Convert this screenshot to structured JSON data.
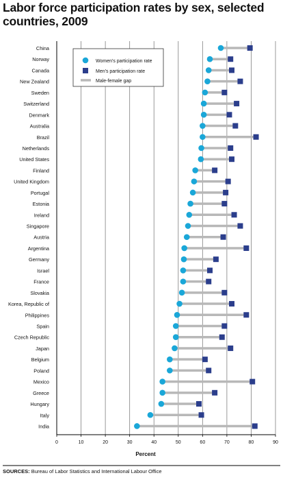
{
  "title": "Labor force participation rates by sex, selected countries, 2009",
  "source": {
    "label": "SOURCES:",
    "text": "Bureau of Labor Statistics and International Labour Office"
  },
  "colors": {
    "women": "#1aa7d8",
    "men": "#2b3e8c",
    "gap": "#b8b8b8",
    "grid": "#7f7f7f",
    "axis": "#000000"
  },
  "chart_data": {
    "type": "scatter",
    "orientation": "horizontal dot plot (dumbbell)",
    "title": "Labor force participation rates by sex, selected countries, 2009",
    "xlabel": "Percent",
    "ylabel": "",
    "xlim": [
      0,
      90
    ],
    "xticks": [
      0,
      10,
      20,
      30,
      40,
      50,
      60,
      70,
      80,
      90
    ],
    "grid": "vertical lines at each tick",
    "legend_position": "top-left inside plot",
    "legend": [
      {
        "key": "women",
        "label": "Women's participation rate",
        "marker": "circle"
      },
      {
        "key": "men",
        "label": "Men's participation rate",
        "marker": "square"
      },
      {
        "key": "gap",
        "label": "Male-female gap",
        "marker": "line"
      }
    ],
    "categories": [
      "China",
      "Norway",
      "Canada",
      "New Zealand",
      "Sweden",
      "Switzerland",
      "Denmark",
      "Australia",
      "Brazil",
      "Netherlands",
      "United States",
      "Finland",
      "United Kingdom",
      "Portugal",
      "Estonia",
      "Ireland",
      "Singapore",
      "Austria",
      "Argentina",
      "Germany",
      "Israel",
      "France",
      "Slovakia",
      "Korea, Republic of",
      "Philippines",
      "Spain",
      "Czech Republic",
      "Japan",
      "Belgium",
      "Poland",
      "Mexico",
      "Greece",
      "Hungary",
      "Italy",
      "India"
    ],
    "series": [
      {
        "name": "Women's participation rate",
        "values": [
          67.5,
          63,
          62.5,
          62,
          61,
          60.5,
          60.5,
          60,
          60,
          59.5,
          59.3,
          57,
          56.5,
          56,
          55,
          54.5,
          54,
          53.5,
          52.5,
          52.3,
          52,
          52,
          51.5,
          50.5,
          49.5,
          49,
          49,
          48.5,
          46.5,
          46.5,
          43.5,
          43.5,
          43,
          38.5,
          33
        ]
      },
      {
        "name": "Men's participation rate",
        "values": [
          79.5,
          71.5,
          72,
          75.5,
          69,
          74,
          71,
          73.5,
          82,
          71.5,
          72,
          65,
          70.5,
          69.5,
          69,
          73,
          75.5,
          68.5,
          78,
          65.5,
          63,
          62.5,
          69,
          72,
          78,
          69,
          68,
          71.5,
          61,
          62.5,
          80.5,
          65,
          58.5,
          59.5,
          81.5
        ]
      }
    ]
  }
}
